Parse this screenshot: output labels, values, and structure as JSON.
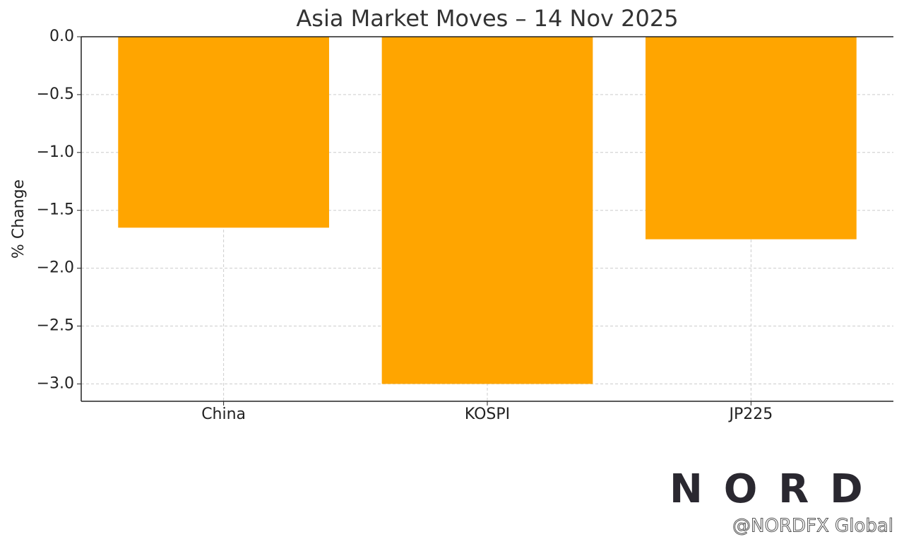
{
  "chart_data": {
    "type": "bar",
    "title": "Asia Market Moves – 14 Nov 2025",
    "y_label": "% Change",
    "categories": [
      "China",
      "KOSPI",
      "JP225"
    ],
    "values": [
      -1.65,
      -3.0,
      -1.75
    ],
    "color": "#ffa500",
    "ylim": [
      -3.15,
      0
    ],
    "yticks": [
      {
        "value": 0,
        "label": "0.0"
      },
      {
        "value": -0.5,
        "label": "−0.5"
      },
      {
        "value": -1.0,
        "label": "−1.0"
      },
      {
        "value": -1.5,
        "label": "−1.5"
      },
      {
        "value": -2.0,
        "label": "−2.0"
      },
      {
        "value": -2.5,
        "label": "−2.5"
      },
      {
        "value": -3.0,
        "label": "−3.0"
      }
    ],
    "grid": true
  },
  "watermark": {
    "logo": "NORD FX",
    "handle": "@NORDFX Global"
  }
}
